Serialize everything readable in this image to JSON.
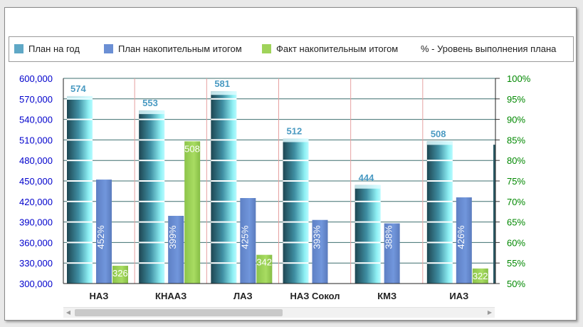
{
  "legend": [
    {
      "label": "План на год",
      "color": "#5fa8c6"
    },
    {
      "label": "План накопительным итогом",
      "color": "#6b8fd4"
    },
    {
      "label": "Факт накопительным итогом",
      "color": "#9fd35a"
    },
    {
      "label": "% - Уровень выполнения плана",
      "color": ""
    }
  ],
  "colors": {
    "left_axis": "#0000cc",
    "right_axis": "#008800",
    "plan_year_label": "#4a9ac2",
    "plan_cum": "#6b8fd4",
    "fact_cum": "#9fd35a",
    "grid": "#3f6f6f",
    "vsep": "#e6a0a0"
  },
  "chart_data": {
    "type": "bar",
    "categories": [
      "НАЗ",
      "КНААЗ",
      "ЛАЗ",
      "НАЗ Сокол",
      "КМЗ",
      "ИАЗ"
    ],
    "series": [
      {
        "name": "План на год",
        "values": [
          574,
          553,
          581,
          512,
          444,
          508
        ],
        "labels": [
          "574",
          "553",
          "581",
          "512",
          "444",
          "508"
        ]
      },
      {
        "name": "План накопительным итогом",
        "values": [
          452,
          399,
          425,
          393,
          388,
          426
        ],
        "labels": [
          "452%",
          "399%",
          "425%",
          "393%",
          "388%",
          "426%"
        ]
      },
      {
        "name": "Факт накопительным итогом",
        "values": [
          326,
          508,
          342,
          300,
          300,
          322
        ],
        "labels": [
          "326",
          "508",
          "342",
          "",
          "",
          "322"
        ]
      }
    ],
    "y_left": {
      "min": 300000,
      "max": 600000,
      "step": 30000,
      "ticks": [
        "300,000",
        "330,000",
        "360,000",
        "390,000",
        "420,000",
        "450,000",
        "480,000",
        "510,000",
        "540,000",
        "570,000",
        "600,000"
      ]
    },
    "y_right": {
      "min": 50,
      "max": 100,
      "step": 5,
      "ticks": [
        "50%",
        "55%",
        "60%",
        "65%",
        "70%",
        "75%",
        "80%",
        "85%",
        "90%",
        "95%",
        "100%"
      ]
    },
    "value_scale_note": "",
    "grid": true,
    "legend_position": "top"
  }
}
